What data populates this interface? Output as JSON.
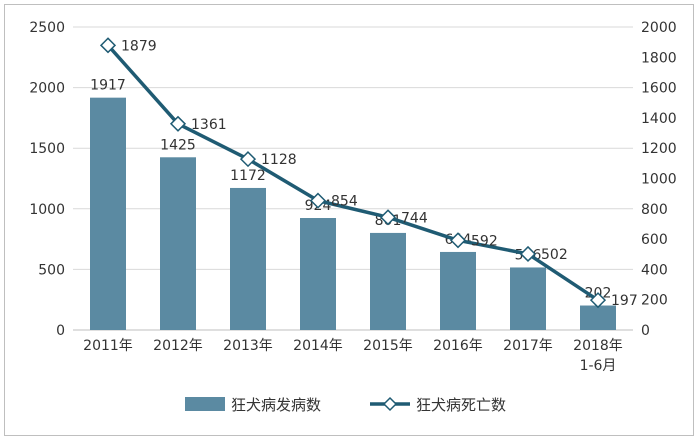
{
  "chart_data": {
    "type": "bar+line",
    "categories": [
      "2011年",
      "2012年",
      "2013年",
      "2014年",
      "2015年",
      "2016年",
      "2017年",
      "2018年\n1-6月"
    ],
    "series": [
      {
        "name": "狂犬病发病数",
        "type": "bar",
        "axis": "left",
        "values": [
          1917,
          1425,
          1172,
          924,
          801,
          644,
          516,
          202
        ],
        "color": "#5b8aa2"
      },
      {
        "name": "狂犬病死亡数",
        "type": "line",
        "axis": "right",
        "values": [
          1879,
          1361,
          1128,
          854,
          744,
          592,
          502,
          197
        ],
        "color": "#1f5b73"
      }
    ],
    "left_axis": {
      "ylim": [
        0,
        2500
      ],
      "ticks": [
        0,
        500,
        1000,
        1500,
        2000,
        2500
      ]
    },
    "right_axis": {
      "ylim": [
        0,
        2000
      ],
      "ticks": [
        0,
        200,
        400,
        600,
        800,
        1000,
        1200,
        1400,
        1600,
        1800,
        2000
      ]
    },
    "grid": true,
    "legend_position": "bottom"
  }
}
